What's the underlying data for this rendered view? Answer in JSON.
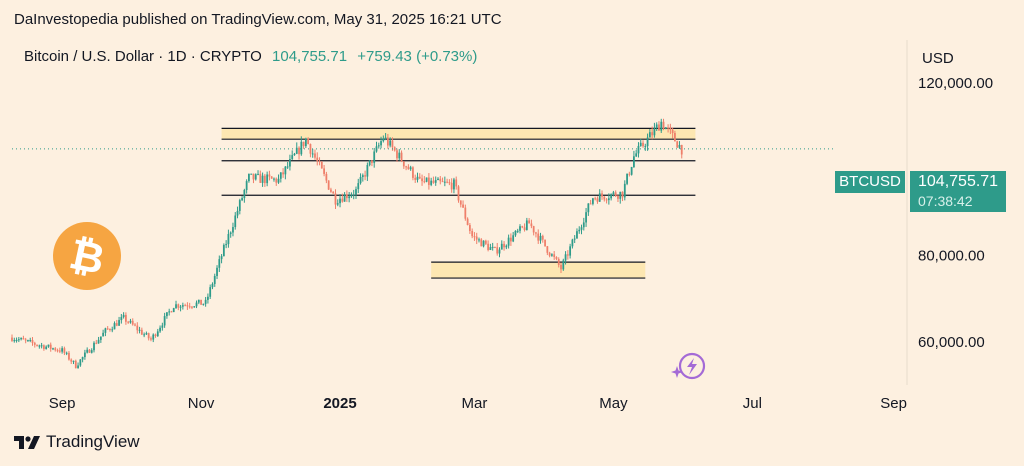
{
  "header": {
    "publisher_line": "DaInvestopedia published on TradingView.com, May 31, 2025 16:21 UTC"
  },
  "legend": {
    "symbol_desc": "Bitcoin / U.S. Dollar · 1D · CRYPTO",
    "price": "104,755.71",
    "change": "+759.43 (+0.73%)"
  },
  "axis": {
    "currency": "USD"
  },
  "price_tag": {
    "symbol": "BTCUSD",
    "price": "104,755.71",
    "countdown": "07:38:42"
  },
  "footer": {
    "brand": "TradingView"
  },
  "colors": {
    "up": "#2e9b8a",
    "down": "#ef7f6a",
    "zone_fill": "#fde7b2",
    "line": "#131722",
    "background": "#fdf0e0",
    "logo": "#f6a542"
  },
  "icons": {
    "logo": "bitcoin-logo-icon",
    "brand": "tradingview-logo-icon",
    "overlay": "flash-sparkle-icon"
  },
  "chart_data": {
    "type": "candlestick",
    "x_axis": {
      "range": [
        "2024-08-10",
        "2025-09-06"
      ],
      "tick_labels": [
        "Sep",
        "Nov",
        "2025",
        "Mar",
        "May",
        "Jul",
        "Sep"
      ],
      "tick_dates": [
        "2024-09-01",
        "2024-11-01",
        "2025-01-01",
        "2025-03-01",
        "2025-05-01",
        "2025-07-01",
        "2025-09-01"
      ]
    },
    "y_axis": {
      "range": [
        50000,
        130000
      ],
      "tick_labels": [
        "120,000.00",
        "80,000.00",
        "60,000.00"
      ],
      "tick_values": [
        120000,
        80000,
        60000
      ]
    },
    "grid": false,
    "last_price": 104755.71,
    "series_anchors": [
      {
        "date": "2024-08-10",
        "close": 61000
      },
      {
        "date": "2024-08-20",
        "close": 59500
      },
      {
        "date": "2024-09-01",
        "close": 58000
      },
      {
        "date": "2024-09-07",
        "close": 54500
      },
      {
        "date": "2024-09-20",
        "close": 62500
      },
      {
        "date": "2024-09-28",
        "close": 65500
      },
      {
        "date": "2024-10-10",
        "close": 60500
      },
      {
        "date": "2024-10-20",
        "close": 68500
      },
      {
        "date": "2024-11-03",
        "close": 69000
      },
      {
        "date": "2024-11-10",
        "close": 80000
      },
      {
        "date": "2024-11-22",
        "close": 98000
      },
      {
        "date": "2024-12-05",
        "close": 97500
      },
      {
        "date": "2024-12-17",
        "close": 107000
      },
      {
        "date": "2024-12-30",
        "close": 93000
      },
      {
        "date": "2025-01-08",
        "close": 95000
      },
      {
        "date": "2025-01-20",
        "close": 107500
      },
      {
        "date": "2025-02-05",
        "close": 97000
      },
      {
        "date": "2025-02-20",
        "close": 96500
      },
      {
        "date": "2025-02-28",
        "close": 84500
      },
      {
        "date": "2025-03-10",
        "close": 81000
      },
      {
        "date": "2025-03-25",
        "close": 87500
      },
      {
        "date": "2025-04-08",
        "close": 77000
      },
      {
        "date": "2025-04-22",
        "close": 93500
      },
      {
        "date": "2025-05-05",
        "close": 94500
      },
      {
        "date": "2025-05-10",
        "close": 103000
      },
      {
        "date": "2025-05-22",
        "close": 111000
      },
      {
        "date": "2025-05-31",
        "close": 104755.71
      }
    ],
    "horizontal_levels": [
      {
        "price": 109500,
        "from": "2024-11-10",
        "to": "2025-06-06"
      },
      {
        "price": 107000,
        "from": "2024-11-10",
        "to": "2025-06-06"
      },
      {
        "price": 102000,
        "from": "2024-11-10",
        "to": "2025-06-06"
      },
      {
        "price": 94000,
        "from": "2024-11-10",
        "to": "2025-06-06"
      },
      {
        "price": 78500,
        "from": "2025-02-10",
        "to": "2025-05-15"
      },
      {
        "price": 74800,
        "from": "2025-02-10",
        "to": "2025-05-15"
      }
    ],
    "zones": [
      {
        "low": 107000,
        "high": 109500,
        "from": "2024-11-10",
        "to": "2025-06-06"
      },
      {
        "low": 74800,
        "high": 78500,
        "from": "2025-02-10",
        "to": "2025-05-15"
      }
    ]
  }
}
